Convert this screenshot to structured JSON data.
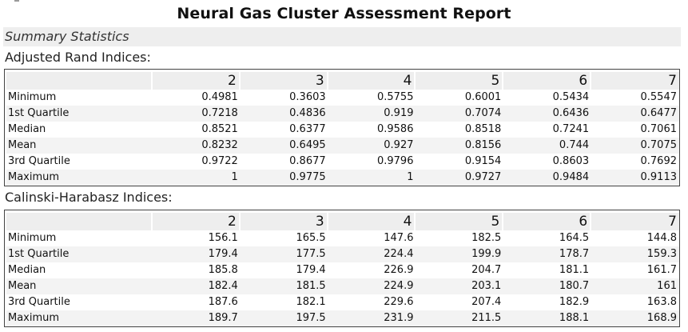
{
  "title": "Neural Gas Cluster Assessment Report",
  "summary_header": "Summary Statistics",
  "sections": [
    {
      "label": "Adjusted Rand Indices:",
      "columns": [
        "2",
        "3",
        "4",
        "5",
        "6",
        "7"
      ],
      "rows": [
        {
          "label": "Minimum",
          "values": [
            "0.4981",
            "0.3603",
            "0.5755",
            "0.6001",
            "0.5434",
            "0.5547"
          ]
        },
        {
          "label": "1st Quartile",
          "values": [
            "0.7218",
            "0.4836",
            "0.919",
            "0.7074",
            "0.6436",
            "0.6477"
          ]
        },
        {
          "label": "Median",
          "values": [
            "0.8521",
            "0.6377",
            "0.9586",
            "0.8518",
            "0.7241",
            "0.7061"
          ]
        },
        {
          "label": "Mean",
          "values": [
            "0.8232",
            "0.6495",
            "0.927",
            "0.8156",
            "0.744",
            "0.7075"
          ]
        },
        {
          "label": "3rd Quartile",
          "values": [
            "0.9722",
            "0.8677",
            "0.9796",
            "0.9154",
            "0.8603",
            "0.7692"
          ]
        },
        {
          "label": "Maximum",
          "values": [
            "1",
            "0.9775",
            "1",
            "0.9727",
            "0.9484",
            "0.9113"
          ]
        }
      ]
    },
    {
      "label": "Calinski-Harabasz Indices:",
      "columns": [
        "2",
        "3",
        "4",
        "5",
        "6",
        "7"
      ],
      "rows": [
        {
          "label": "Minimum",
          "values": [
            "156.1",
            "165.5",
            "147.6",
            "182.5",
            "164.5",
            "144.8"
          ]
        },
        {
          "label": "1st Quartile",
          "values": [
            "179.4",
            "177.5",
            "224.4",
            "199.9",
            "178.7",
            "159.3"
          ]
        },
        {
          "label": "Median",
          "values": [
            "185.8",
            "179.4",
            "226.9",
            "204.7",
            "181.1",
            "161.7"
          ]
        },
        {
          "label": "Mean",
          "values": [
            "182.4",
            "181.5",
            "224.9",
            "203.1",
            "180.7",
            "161"
          ]
        },
        {
          "label": "3rd Quartile",
          "values": [
            "187.6",
            "182.1",
            "229.6",
            "207.4",
            "182.9",
            "163.8"
          ]
        },
        {
          "label": "Maximum",
          "values": [
            "189.7",
            "197.5",
            "231.9",
            "211.5",
            "188.1",
            "168.9"
          ]
        }
      ]
    }
  ]
}
